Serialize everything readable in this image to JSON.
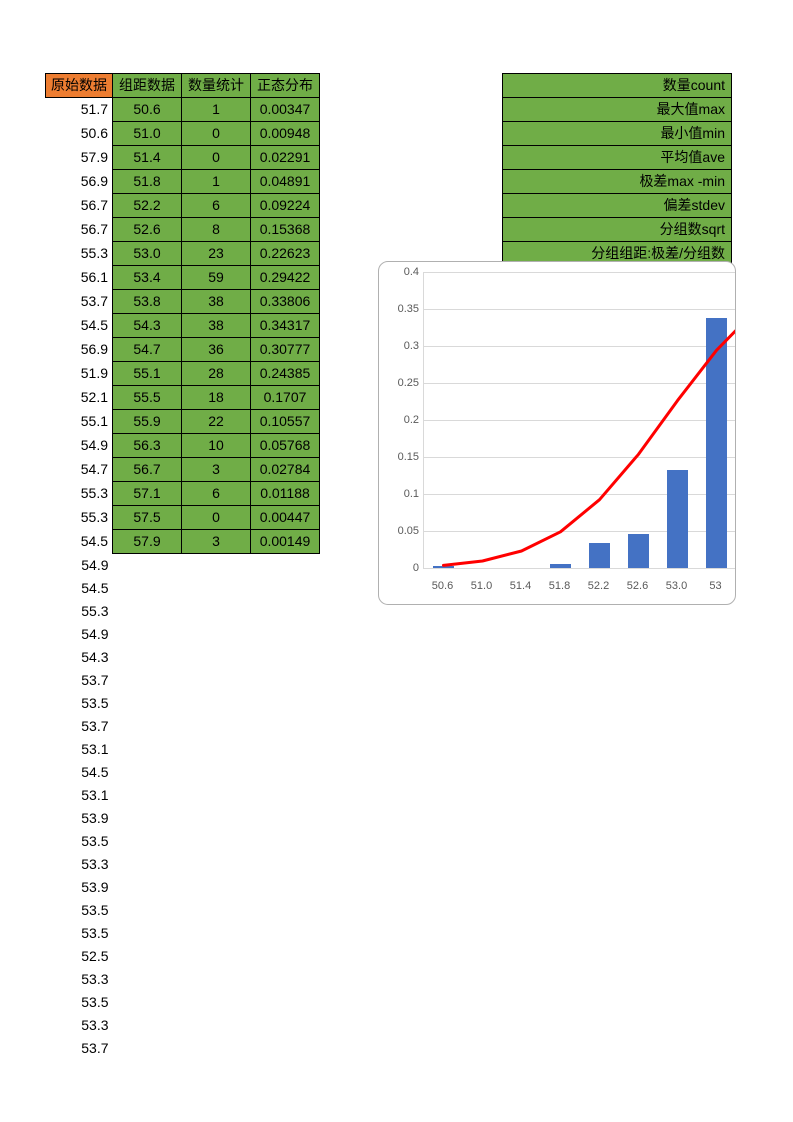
{
  "headers": {
    "raw": "原始数据",
    "bin": "组距数据",
    "count": "数量统计",
    "normal": "正态分布"
  },
  "raw_data": [
    51.7,
    50.6,
    57.9,
    56.9,
    56.7,
    56.7,
    55.3,
    56.1,
    53.7,
    54.5,
    56.9,
    51.9,
    52.1,
    55.1,
    54.9,
    54.7,
    55.3,
    55.3,
    54.5,
    54.9,
    54.5,
    55.3,
    54.9,
    54.3,
    53.7,
    53.5,
    53.7,
    53.1,
    54.5,
    53.1,
    53.9,
    53.5,
    53.3,
    53.9,
    53.5,
    53.5,
    52.5,
    53.3,
    53.5,
    53.3,
    53.7
  ],
  "bin_rows": [
    {
      "bin": "50.6",
      "count": 1,
      "normal": "0.00347"
    },
    {
      "bin": "51.0",
      "count": 0,
      "normal": "0.00948"
    },
    {
      "bin": "51.4",
      "count": 0,
      "normal": "0.02291"
    },
    {
      "bin": "51.8",
      "count": 1,
      "normal": "0.04891"
    },
    {
      "bin": "52.2",
      "count": 6,
      "normal": "0.09224"
    },
    {
      "bin": "52.6",
      "count": 8,
      "normal": "0.15368"
    },
    {
      "bin": "53.0",
      "count": 23,
      "normal": "0.22623"
    },
    {
      "bin": "53.4",
      "count": 59,
      "normal": "0.29422"
    },
    {
      "bin": "53.8",
      "count": 38,
      "normal": "0.33806"
    },
    {
      "bin": "54.3",
      "count": 38,
      "normal": "0.34317"
    },
    {
      "bin": "54.7",
      "count": 36,
      "normal": "0.30777"
    },
    {
      "bin": "55.1",
      "count": 28,
      "normal": "0.24385"
    },
    {
      "bin": "55.5",
      "count": 18,
      "normal": "0.1707"
    },
    {
      "bin": "55.9",
      "count": 22,
      "normal": "0.10557"
    },
    {
      "bin": "56.3",
      "count": 10,
      "normal": "0.05768"
    },
    {
      "bin": "56.7",
      "count": 3,
      "normal": "0.02784"
    },
    {
      "bin": "57.1",
      "count": 6,
      "normal": "0.01188"
    },
    {
      "bin": "57.5",
      "count": 0,
      "normal": "0.00447"
    },
    {
      "bin": "57.9",
      "count": 3,
      "normal": "0.00149"
    }
  ],
  "stats_labels": [
    "数量count",
    "最大值max",
    "最小值min",
    "平均值ave",
    "极差max -min",
    "偏差stdev",
    "分组数sqrt",
    "分组组距:极差/分组数"
  ],
  "chart": {
    "type": "bar+line",
    "ylim": [
      0,
      0.4
    ],
    "ytick_step": 0.05,
    "x_categories": [
      "50.6",
      "51.0",
      "51.4",
      "51.8",
      "52.2",
      "52.6",
      "53.0",
      "53"
    ],
    "bar_values": [
      0.003,
      0.0,
      0.0,
      0.006,
      0.034,
      0.046,
      0.132,
      0.338
    ],
    "line_values": [
      0.00347,
      0.00948,
      0.02291,
      0.04891,
      0.09224,
      0.15368,
      0.22623,
      0.29422
    ],
    "bar_color": "#4472c4",
    "line_color": "#ff0000",
    "line_width": 3,
    "grid_color": "#d9d9d9",
    "background_color": "#ffffff",
    "label_color": "#595959",
    "label_fontsize": 11
  }
}
